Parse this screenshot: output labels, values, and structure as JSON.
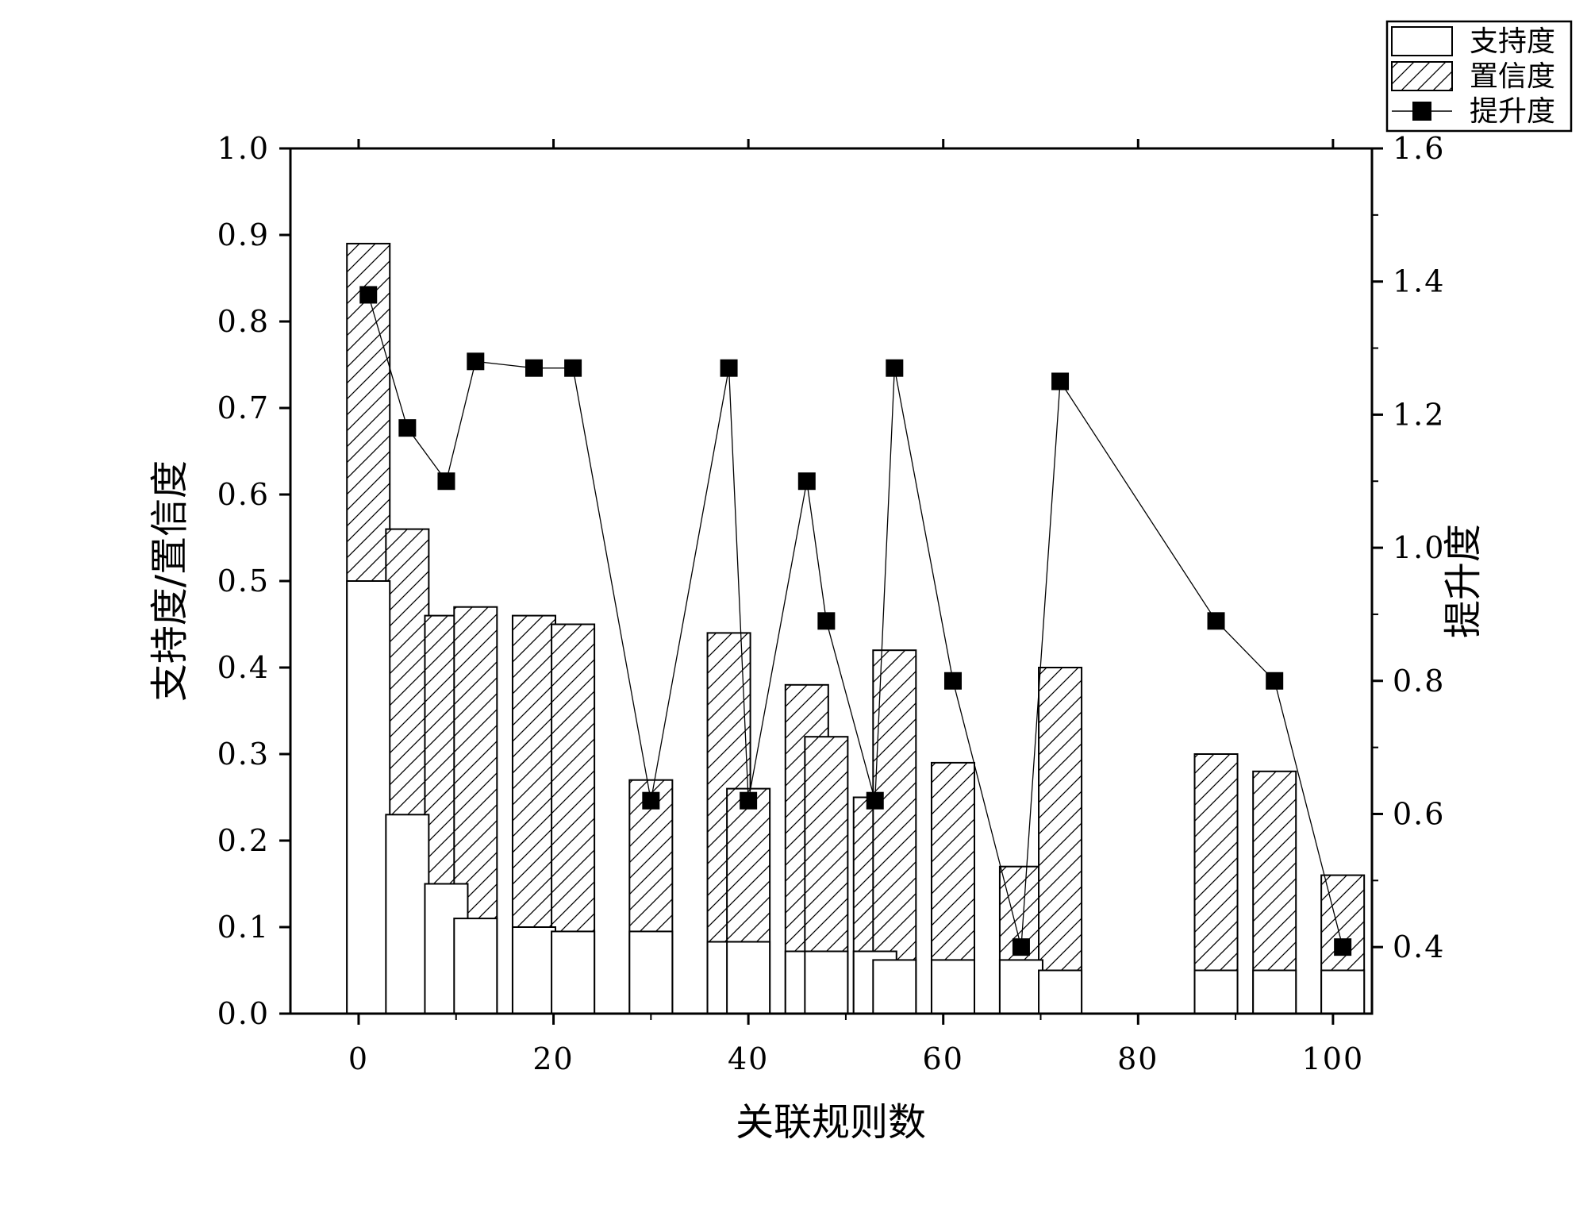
{
  "chart_data": {
    "type": "bar",
    "xlabel": "关联规则数",
    "ylabel_left": "支持度/置信度",
    "ylabel_right": "提升度",
    "xlim": [
      -7,
      104
    ],
    "xticks": [
      0,
      20,
      40,
      60,
      80,
      100
    ],
    "ylim_left": [
      0,
      1.0
    ],
    "yticks_left": [
      0.0,
      0.1,
      0.2,
      0.3,
      0.4,
      0.5,
      0.6,
      0.7,
      0.8,
      0.9,
      1.0
    ],
    "ylim_right": [
      0.3,
      1.6
    ],
    "yticks_right": [
      0.4,
      0.6,
      0.8,
      1.0,
      1.2,
      1.4,
      1.6
    ],
    "bar_width": 4.4,
    "x": [
      1,
      5,
      9,
      12,
      18,
      22,
      30,
      38,
      40,
      46,
      48,
      53,
      55,
      61,
      68,
      72,
      88,
      94,
      101
    ],
    "series": [
      {
        "name": "支持度",
        "kind": "bar",
        "fill": "none",
        "values": [
          0.5,
          0.23,
          0.15,
          0.11,
          0.1,
          0.095,
          0.095,
          0.083,
          0.083,
          0.072,
          0.072,
          0.072,
          0.062,
          0.062,
          0.062,
          0.05,
          0.05,
          0.05,
          0.05
        ]
      },
      {
        "name": "置信度",
        "kind": "bar",
        "fill": "hatch",
        "values": [
          0.89,
          0.56,
          0.46,
          0.47,
          0.46,
          0.45,
          0.27,
          0.44,
          0.26,
          0.38,
          0.32,
          0.25,
          0.42,
          0.29,
          0.17,
          0.4,
          0.3,
          0.28,
          0.16
        ]
      },
      {
        "name": "提升度",
        "kind": "line",
        "axis": "right",
        "marker": "square",
        "values": [
          1.38,
          1.18,
          1.1,
          1.28,
          1.27,
          1.27,
          0.62,
          1.27,
          0.62,
          1.1,
          0.89,
          0.62,
          1.27,
          0.8,
          0.4,
          1.25,
          0.89,
          0.8,
          0.4
        ]
      }
    ],
    "legend_position": "top-right",
    "colors": {
      "ink": "#000000",
      "background": "#ffffff"
    }
  }
}
